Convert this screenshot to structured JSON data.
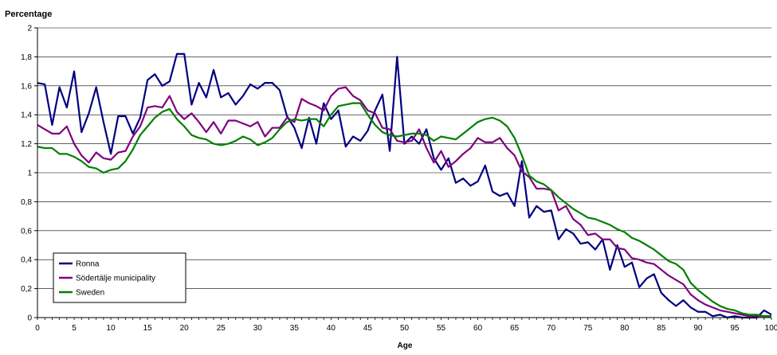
{
  "chart_data": {
    "type": "line",
    "ylabel": "Percentage",
    "xlabel": "Age",
    "xlim": [
      0,
      100
    ],
    "ylim": [
      0,
      2
    ],
    "x_ticks": [
      0,
      5,
      10,
      15,
      20,
      25,
      30,
      35,
      40,
      45,
      50,
      55,
      60,
      65,
      70,
      75,
      80,
      85,
      90,
      95,
      100
    ],
    "y_ticks": [
      {
        "value": 0,
        "label": "0"
      },
      {
        "value": 0.2,
        "label": "0,2"
      },
      {
        "value": 0.4,
        "label": "0,4"
      },
      {
        "value": 0.6,
        "label": "0,6"
      },
      {
        "value": 0.8,
        "label": "0,8"
      },
      {
        "value": 1,
        "label": "1"
      },
      {
        "value": 1.2,
        "label": "1,2"
      },
      {
        "value": 1.4,
        "label": "1,4"
      },
      {
        "value": 1.6,
        "label": "1,6"
      },
      {
        "value": 1.8,
        "label": "1,8"
      },
      {
        "value": 2,
        "label": "2"
      }
    ],
    "grid": "horizontal",
    "legend_position": "bottom-left",
    "x": [
      0,
      1,
      2,
      3,
      4,
      5,
      6,
      7,
      8,
      9,
      10,
      11,
      12,
      13,
      14,
      15,
      16,
      17,
      18,
      19,
      20,
      21,
      22,
      23,
      24,
      25,
      26,
      27,
      28,
      29,
      30,
      31,
      32,
      33,
      34,
      35,
      36,
      37,
      38,
      39,
      40,
      41,
      42,
      43,
      44,
      45,
      46,
      47,
      48,
      49,
      50,
      51,
      52,
      53,
      54,
      55,
      56,
      57,
      58,
      59,
      60,
      61,
      62,
      63,
      64,
      65,
      66,
      67,
      68,
      69,
      70,
      71,
      72,
      73,
      74,
      75,
      76,
      77,
      78,
      79,
      80,
      81,
      82,
      83,
      84,
      85,
      86,
      87,
      88,
      89,
      90,
      91,
      92,
      93,
      94,
      95,
      96,
      97,
      98,
      99,
      100
    ],
    "series": [
      {
        "name": "Ronna",
        "color": "#000080",
        "values": [
          1.62,
          1.61,
          1.33,
          1.59,
          1.45,
          1.7,
          1.28,
          1.41,
          1.59,
          1.35,
          1.13,
          1.39,
          1.39,
          1.27,
          1.38,
          1.64,
          1.68,
          1.6,
          1.63,
          1.82,
          1.82,
          1.47,
          1.62,
          1.52,
          1.71,
          1.52,
          1.55,
          1.47,
          1.53,
          1.61,
          1.58,
          1.62,
          1.62,
          1.57,
          1.39,
          1.31,
          1.17,
          1.38,
          1.2,
          1.48,
          1.37,
          1.43,
          1.18,
          1.25,
          1.22,
          1.29,
          1.43,
          1.54,
          1.15,
          1.8,
          1.2,
          1.25,
          1.2,
          1.3,
          1.1,
          1.02,
          1.1,
          0.93,
          0.96,
          0.91,
          0.94,
          1.05,
          0.87,
          0.84,
          0.86,
          0.77,
          1.08,
          0.69,
          0.77,
          0.73,
          0.74,
          0.54,
          0.61,
          0.58,
          0.51,
          0.52,
          0.47,
          0.54,
          0.33,
          0.5,
          0.35,
          0.38,
          0.21,
          0.27,
          0.3,
          0.17,
          0.12,
          0.08,
          0.12,
          0.07,
          0.04,
          0.04,
          0.01,
          0.02,
          0.0,
          0.01,
          0.0,
          0.0,
          0.0,
          0.05,
          0.02
        ]
      },
      {
        "name": "Södertälje municipality",
        "color": "#800080",
        "values": [
          1.33,
          1.3,
          1.27,
          1.27,
          1.32,
          1.2,
          1.12,
          1.07,
          1.14,
          1.1,
          1.09,
          1.14,
          1.15,
          1.25,
          1.32,
          1.45,
          1.46,
          1.45,
          1.53,
          1.42,
          1.37,
          1.41,
          1.35,
          1.28,
          1.35,
          1.27,
          1.36,
          1.36,
          1.34,
          1.32,
          1.35,
          1.25,
          1.31,
          1.31,
          1.38,
          1.35,
          1.51,
          1.48,
          1.46,
          1.43,
          1.53,
          1.58,
          1.59,
          1.53,
          1.5,
          1.43,
          1.41,
          1.31,
          1.3,
          1.22,
          1.21,
          1.22,
          1.3,
          1.17,
          1.07,
          1.15,
          1.04,
          1.08,
          1.13,
          1.17,
          1.24,
          1.21,
          1.21,
          1.24,
          1.17,
          1.12,
          1.01,
          0.97,
          0.89,
          0.89,
          0.88,
          0.74,
          0.77,
          0.68,
          0.64,
          0.57,
          0.58,
          0.54,
          0.54,
          0.48,
          0.47,
          0.41,
          0.4,
          0.38,
          0.37,
          0.33,
          0.29,
          0.26,
          0.23,
          0.16,
          0.12,
          0.09,
          0.07,
          0.05,
          0.04,
          0.03,
          0.02,
          0.01,
          0.01,
          0.01,
          0.01
        ]
      },
      {
        "name": "Sweden",
        "color": "#008000",
        "values": [
          1.18,
          1.17,
          1.17,
          1.13,
          1.13,
          1.11,
          1.08,
          1.04,
          1.03,
          1.0,
          1.02,
          1.03,
          1.08,
          1.16,
          1.26,
          1.32,
          1.38,
          1.42,
          1.44,
          1.37,
          1.32,
          1.26,
          1.24,
          1.23,
          1.2,
          1.19,
          1.2,
          1.22,
          1.25,
          1.23,
          1.19,
          1.21,
          1.24,
          1.3,
          1.35,
          1.37,
          1.36,
          1.37,
          1.37,
          1.32,
          1.4,
          1.46,
          1.47,
          1.48,
          1.48,
          1.4,
          1.33,
          1.28,
          1.26,
          1.25,
          1.26,
          1.27,
          1.27,
          1.26,
          1.22,
          1.25,
          1.24,
          1.23,
          1.27,
          1.31,
          1.35,
          1.37,
          1.38,
          1.36,
          1.32,
          1.24,
          1.12,
          0.98,
          0.94,
          0.92,
          0.88,
          0.83,
          0.79,
          0.75,
          0.72,
          0.69,
          0.68,
          0.66,
          0.64,
          0.61,
          0.59,
          0.55,
          0.53,
          0.5,
          0.47,
          0.43,
          0.39,
          0.37,
          0.33,
          0.24,
          0.19,
          0.15,
          0.11,
          0.08,
          0.06,
          0.05,
          0.03,
          0.02,
          0.02,
          0.01,
          0.01
        ]
      }
    ]
  }
}
